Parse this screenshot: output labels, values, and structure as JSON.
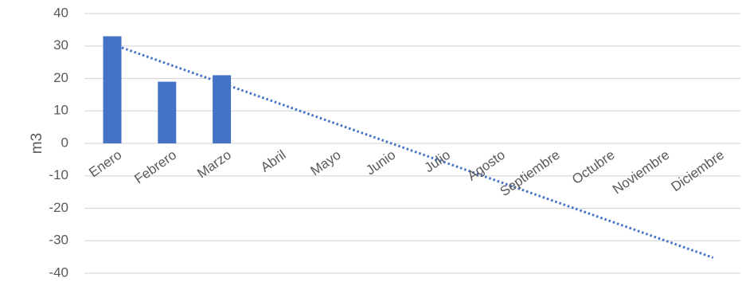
{
  "chart_data": {
    "type": "bar",
    "categories": [
      "Enero",
      "Febrero",
      "Marzo",
      "Abril",
      "Mayo",
      "Junio",
      "Julio",
      "Agosto",
      "Septiembre",
      "Octubre",
      "Noviembre",
      "Diciembre"
    ],
    "values": [
      33,
      19,
      21,
      null,
      null,
      null,
      null,
      null,
      null,
      null,
      null,
      null
    ],
    "trendline": {
      "type": "linear",
      "style": "dotted",
      "start": 29.5,
      "end": -35.2
    },
    "ylabel": "m3",
    "ylim": [
      -40,
      40
    ],
    "yticks": [
      40,
      30,
      20,
      10,
      0,
      -10,
      -20,
      -30,
      -40
    ],
    "grid": true,
    "bar_color": "#4472C4",
    "trend_color": "#4472C4",
    "grid_color": "#D9D9D9"
  }
}
